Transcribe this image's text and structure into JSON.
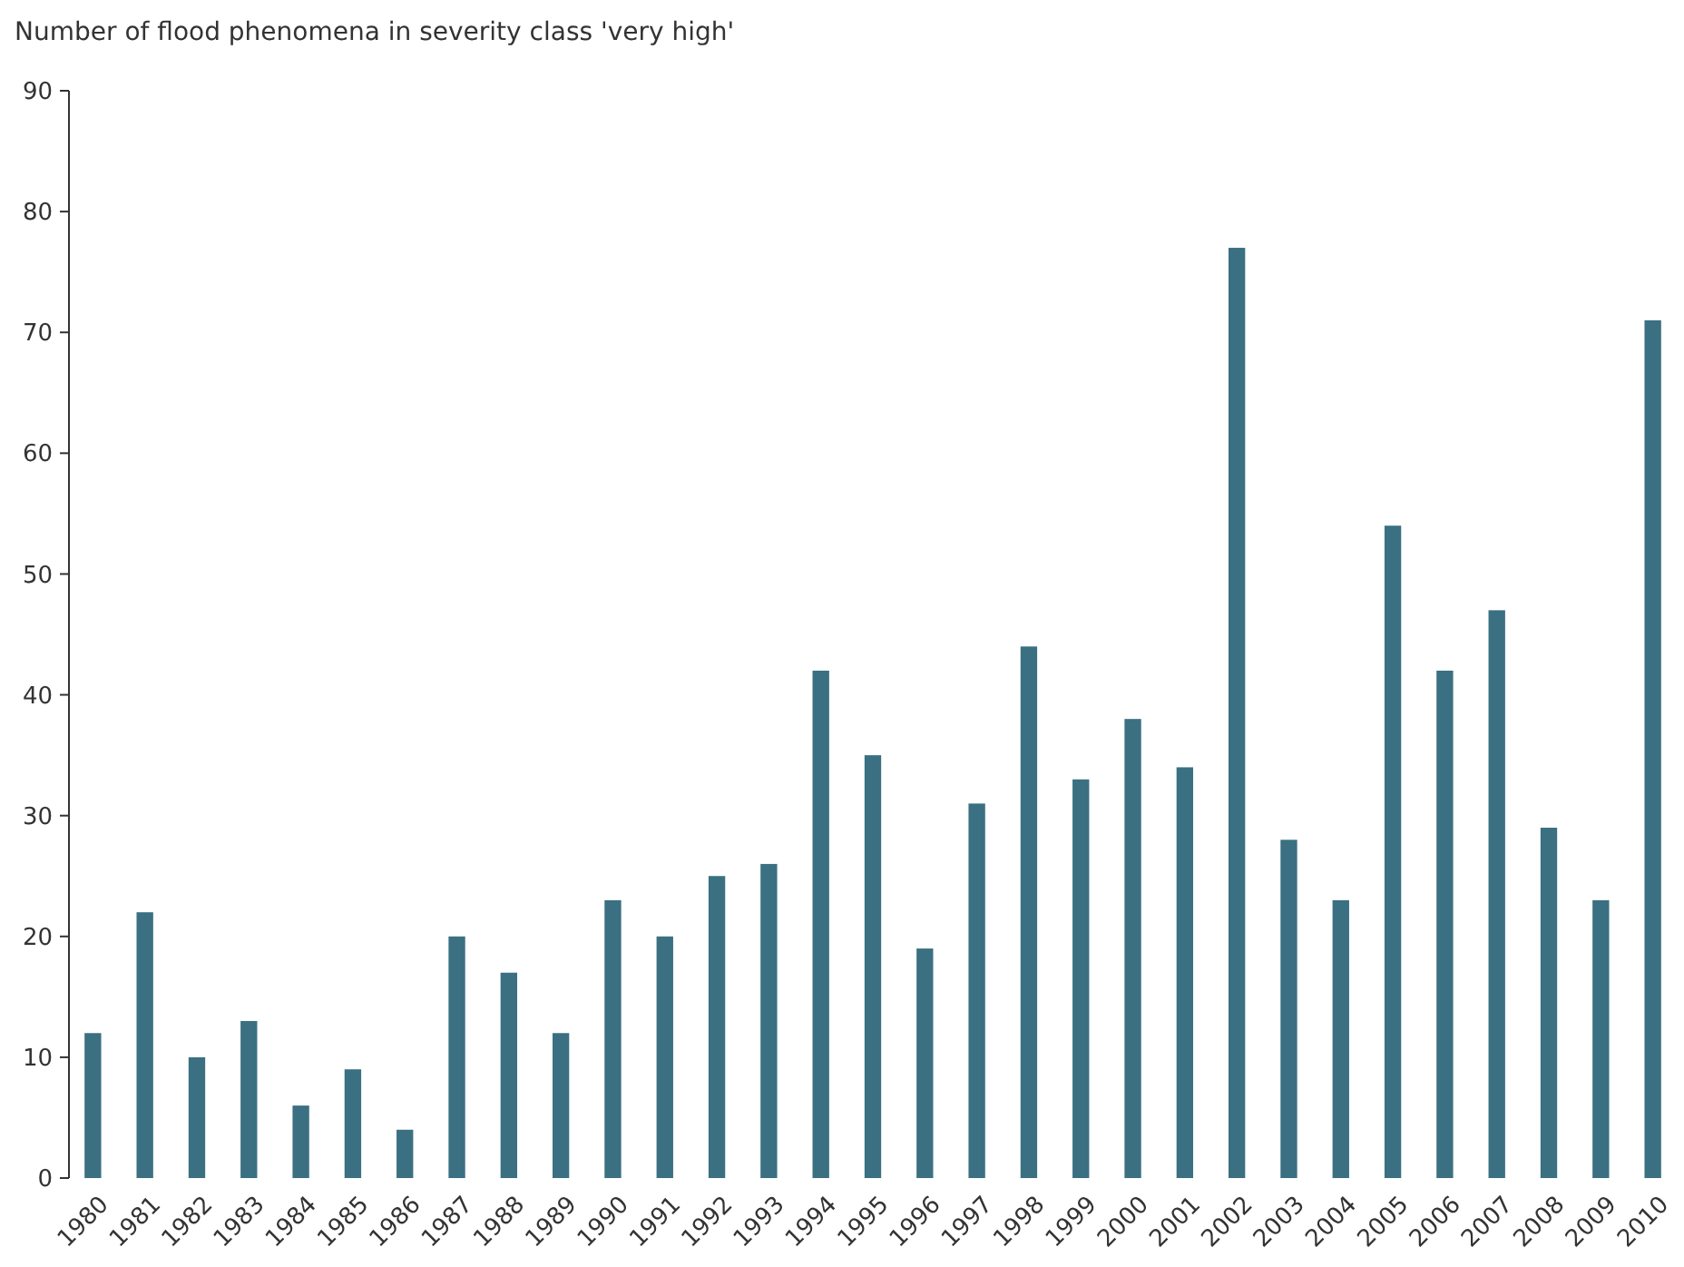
{
  "chart_data": {
    "type": "bar",
    "title": "Number of flood phenomena in severity class 'very high'",
    "categories": [
      "1980",
      "1981",
      "1982",
      "1983",
      "1984",
      "1985",
      "1986",
      "1987",
      "1988",
      "1989",
      "1990",
      "1991",
      "1992",
      "1993",
      "1994",
      "1995",
      "1996",
      "1997",
      "1998",
      "1999",
      "2000",
      "2001",
      "2002",
      "2003",
      "2004",
      "2005",
      "2006",
      "2007",
      "2008",
      "2009",
      "2010"
    ],
    "values": [
      12,
      22,
      10,
      13,
      6,
      9,
      4,
      20,
      17,
      12,
      23,
      20,
      25,
      26,
      42,
      35,
      19,
      31,
      44,
      33,
      38,
      34,
      77,
      28,
      23,
      54,
      42,
      47,
      29,
      23,
      71
    ],
    "color": "#3a7082",
    "ylim": [
      0,
      90
    ],
    "yticks": [
      0,
      10,
      20,
      30,
      40,
      50,
      60,
      70,
      80,
      90
    ],
    "grid": false
  }
}
